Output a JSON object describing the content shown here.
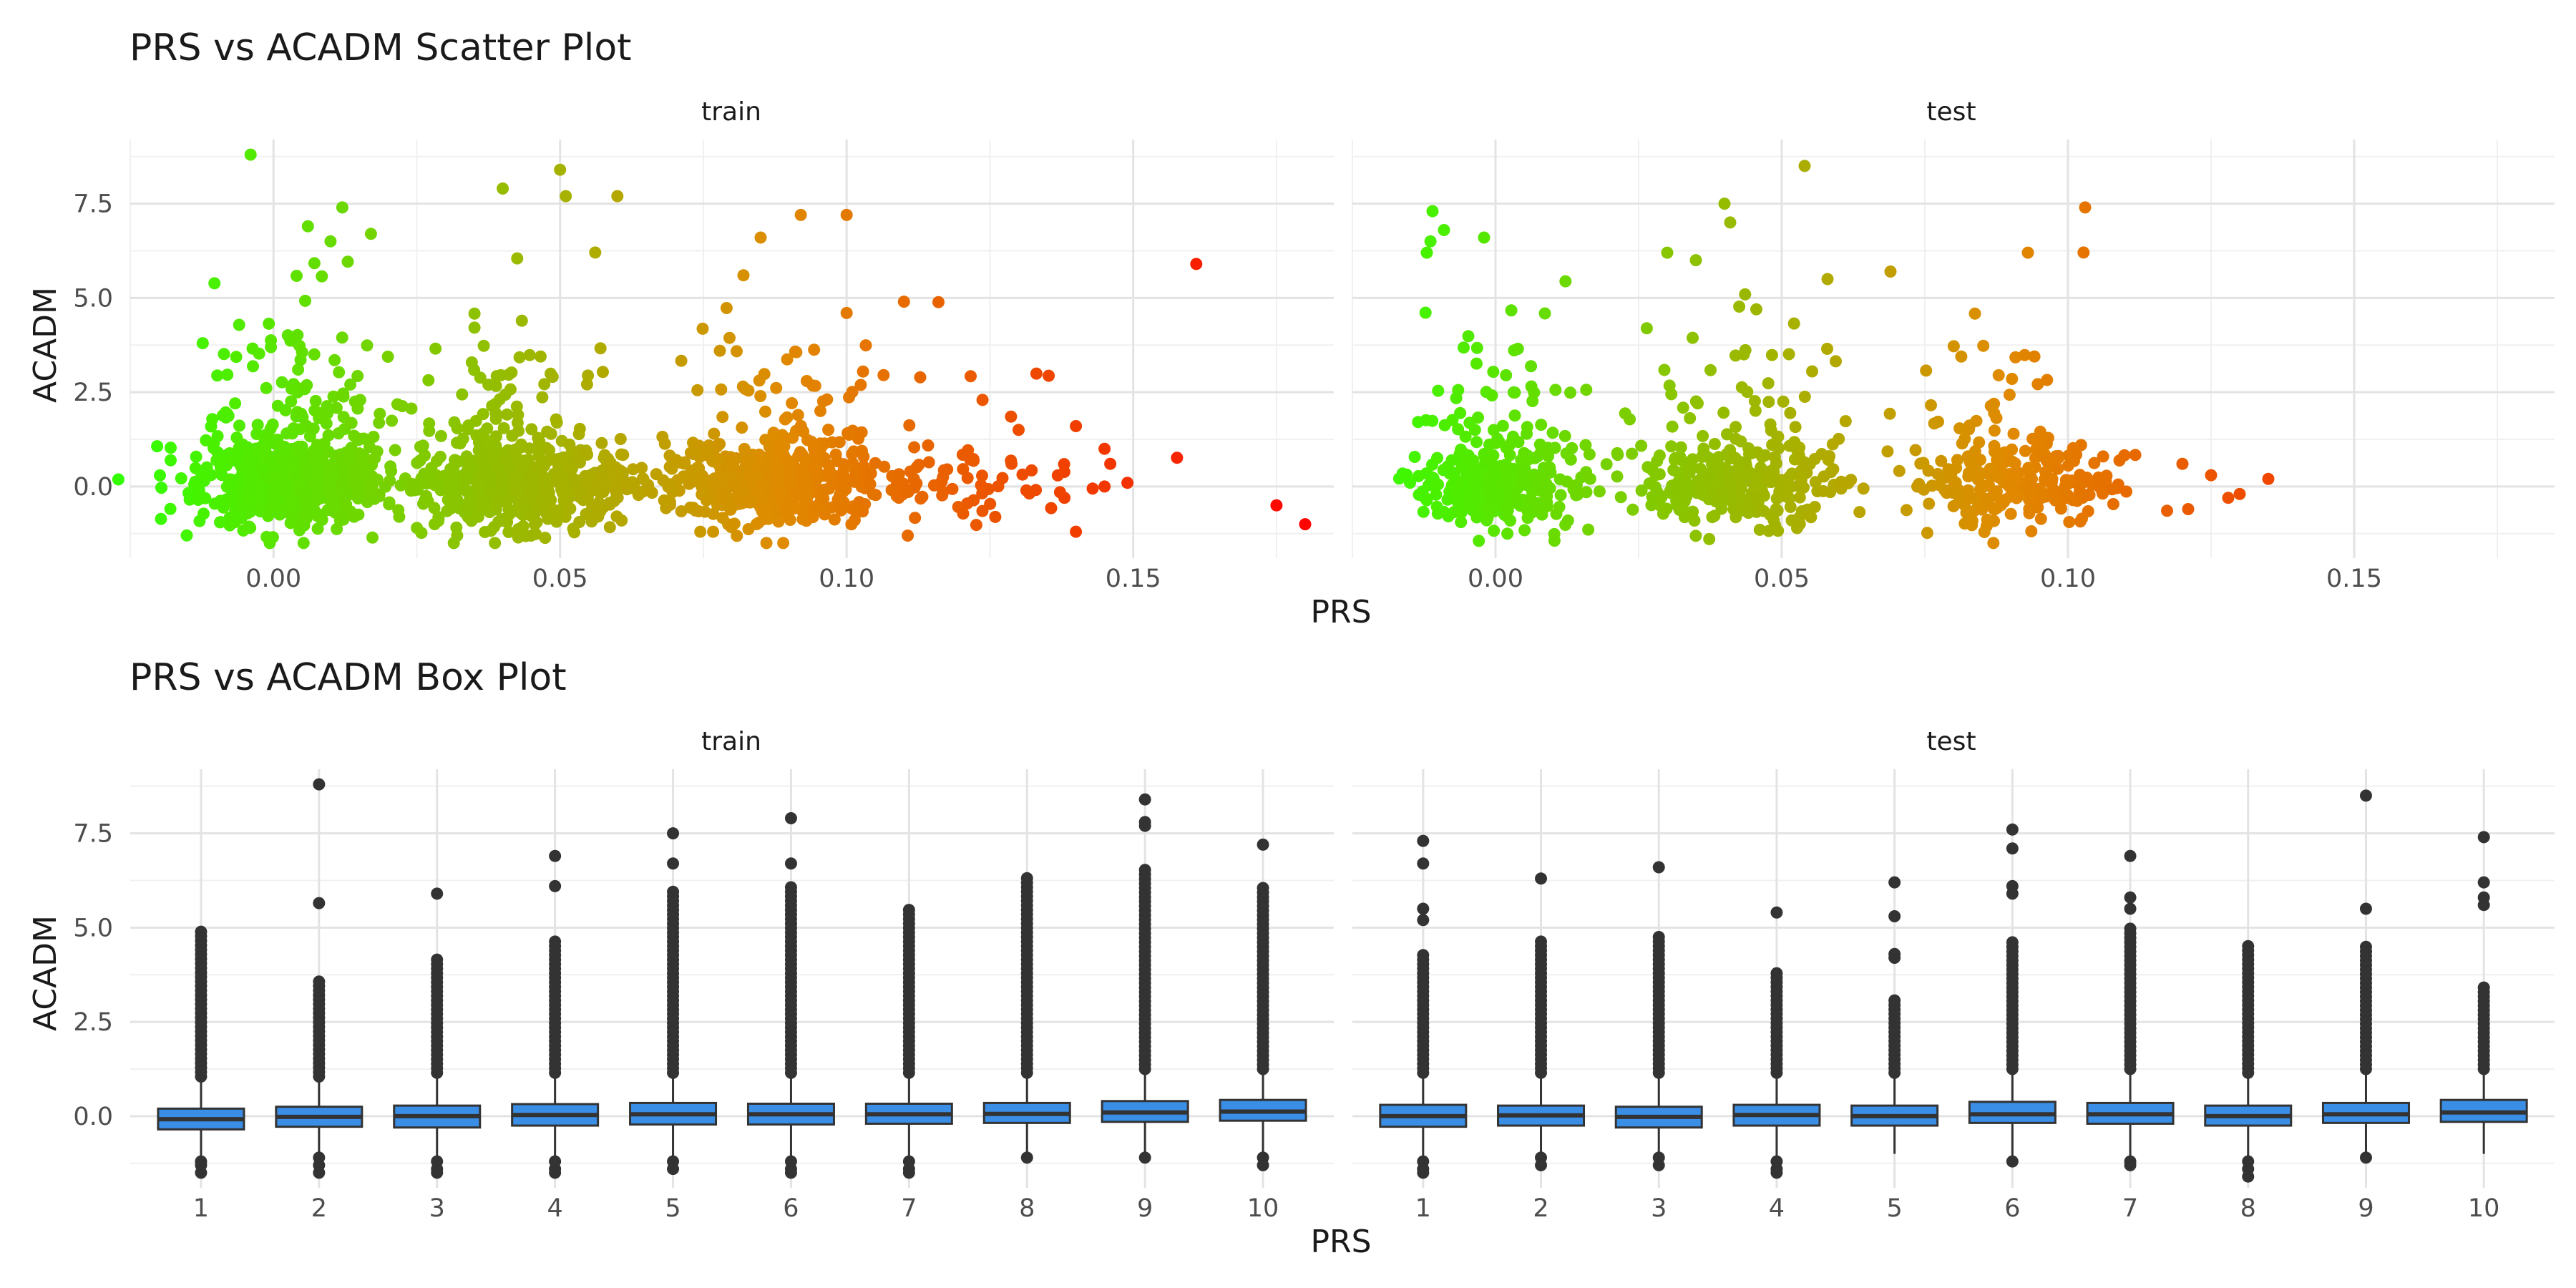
{
  "figure": {
    "title_scatter": "PRS vs ACADM Scatter Plot",
    "title_box": "PRS vs ACADM Box Plot",
    "panels": [
      "train",
      "test"
    ],
    "xlabel": "PRS",
    "ylabel": "ACADM",
    "color_low": "#33ff00",
    "color_mid": "#e08a00",
    "color_high": "#ff0000",
    "box_fill": "#3a8ee6",
    "box_line": "#333333"
  },
  "chart_data": [
    {
      "type": "scatter",
      "title": "PRS vs ACADM Scatter Plot",
      "xlabel": "PRS",
      "ylabel": "ACADM",
      "facets": [
        "train",
        "test"
      ],
      "xlim": [
        -0.025,
        0.185
      ],
      "ylim": [
        -1.9,
        9.2
      ],
      "x_ticks": [
        0.0,
        0.05,
        0.1,
        0.15
      ],
      "x_tick_labels": [
        "0.00",
        "0.05",
        "0.10",
        "0.15"
      ],
      "y_ticks": [
        0.0,
        2.5,
        5.0,
        7.5
      ],
      "y_tick_labels": [
        "0.0",
        "2.5",
        "5.0",
        "7.5"
      ],
      "grid": true,
      "color_scale": "green-to-red by PRS",
      "series": [
        {
          "facet": "train",
          "clusters": [
            {
              "x_center": 0.003,
              "x_spread": 0.008,
              "count": 700
            },
            {
              "x_center": 0.042,
              "x_spread": 0.01,
              "count": 600
            },
            {
              "x_center": 0.088,
              "x_spread": 0.01,
              "count": 480
            },
            {
              "x_center": 0.118,
              "x_spread": 0.012,
              "count": 70
            }
          ],
          "outliers": [
            [
              -0.004,
              8.8
            ],
            [
              0.012,
              7.4
            ],
            [
              0.04,
              7.9
            ],
            [
              0.05,
              8.4
            ],
            [
              0.051,
              7.7
            ],
            [
              0.06,
              7.7
            ],
            [
              0.085,
              6.6
            ],
            [
              0.092,
              7.2
            ],
            [
              0.1,
              7.2
            ],
            [
              0.017,
              6.7
            ],
            [
              0.006,
              6.9
            ],
            [
              0.082,
              5.6
            ],
            [
              0.11,
              4.9
            ],
            [
              0.1,
              4.6
            ],
            [
              0.13,
              1.5
            ],
            [
              0.14,
              1.6
            ],
            [
              0.145,
              1.0
            ],
            [
              0.146,
              0.6
            ],
            [
              0.145,
              0.0
            ],
            [
              0.138,
              -0.3
            ],
            [
              0.14,
              -1.2
            ],
            [
              0.161,
              5.9
            ],
            [
              0.175,
              -0.5
            ],
            [
              0.18,
              -1.0
            ]
          ]
        },
        {
          "facet": "test",
          "clusters": [
            {
              "x_center": 0.0,
              "x_spread": 0.007,
              "count": 320
            },
            {
              "x_center": 0.043,
              "x_spread": 0.009,
              "count": 330
            },
            {
              "x_center": 0.09,
              "x_spread": 0.009,
              "count": 260
            }
          ],
          "outliers": [
            [
              -0.011,
              7.3
            ],
            [
              -0.009,
              6.8
            ],
            [
              -0.012,
              6.2
            ],
            [
              -0.002,
              6.6
            ],
            [
              0.03,
              6.2
            ],
            [
              0.035,
              6.0
            ],
            [
              0.04,
              7.5
            ],
            [
              0.041,
              7.0
            ],
            [
              0.054,
              8.5
            ],
            [
              0.058,
              5.5
            ],
            [
              0.069,
              5.7
            ],
            [
              0.093,
              6.2
            ],
            [
              0.103,
              7.4
            ],
            [
              0.12,
              0.6
            ],
            [
              0.13,
              -0.2
            ],
            [
              0.135,
              0.2
            ],
            [
              0.125,
              0.3
            ],
            [
              0.128,
              -0.3
            ],
            [
              0.121,
              -0.6
            ]
          ]
        }
      ]
    },
    {
      "type": "box",
      "title": "PRS vs ACADM Box Plot",
      "xlabel": "PRS",
      "ylabel": "ACADM",
      "facets": [
        "train",
        "test"
      ],
      "categories": [
        "1",
        "2",
        "3",
        "4",
        "5",
        "6",
        "7",
        "8",
        "9",
        "10"
      ],
      "ylim": [
        -1.9,
        9.2
      ],
      "y_ticks": [
        0.0,
        2.5,
        5.0,
        7.5
      ],
      "y_tick_labels": [
        "0.0",
        "2.5",
        "5.0",
        "7.5"
      ],
      "grid": true,
      "series": [
        {
          "facet": "train",
          "boxes": [
            {
              "q1": -0.35,
              "median": -0.08,
              "q3": 0.2,
              "lower": -1.1,
              "upper": 1.0,
              "outliers_high_max": 4.9,
              "outliers_high_min": 1.05,
              "outliers_low": [
                -1.2,
                -1.3,
                -1.5
              ]
            },
            {
              "q1": -0.28,
              "median": -0.02,
              "q3": 0.25,
              "lower": -1.0,
              "upper": 1.0,
              "outliers_high_max": 3.6,
              "outliers_high_min": 1.05,
              "outliers_low": [
                -1.1,
                -1.3,
                -1.5
              ],
              "extra_outliers": [
                5.65,
                8.8
              ]
            },
            {
              "q1": -0.3,
              "median": 0.0,
              "q3": 0.28,
              "lower": -1.1,
              "upper": 1.1,
              "outliers_high_max": 4.2,
              "outliers_high_min": 1.15,
              "outliers_low": [
                -1.2,
                -1.4,
                -1.5
              ],
              "extra_outliers": [
                5.9
              ]
            },
            {
              "q1": -0.25,
              "median": 0.03,
              "q3": 0.32,
              "lower": -1.1,
              "upper": 1.1,
              "outliers_high_max": 4.7,
              "outliers_high_min": 1.15,
              "outliers_low": [
                -1.2,
                -1.4,
                -1.5
              ],
              "extra_outliers": [
                6.1,
                6.9
              ]
            },
            {
              "q1": -0.22,
              "median": 0.05,
              "q3": 0.35,
              "lower": -1.1,
              "upper": 1.1,
              "outliers_high_max": 6.0,
              "outliers_high_min": 1.15,
              "outliers_low": [
                -1.2,
                -1.4
              ],
              "extra_outliers": [
                6.7,
                7.5
              ]
            },
            {
              "q1": -0.22,
              "median": 0.05,
              "q3": 0.33,
              "lower": -1.1,
              "upper": 1.1,
              "outliers_high_max": 6.1,
              "outliers_high_min": 1.15,
              "outliers_low": [
                -1.2,
                -1.4,
                -1.5
              ],
              "extra_outliers": [
                6.7,
                7.9
              ]
            },
            {
              "q1": -0.2,
              "median": 0.05,
              "q3": 0.33,
              "lower": -1.1,
              "upper": 1.1,
              "outliers_high_max": 5.5,
              "outliers_high_min": 1.15,
              "outliers_low": [
                -1.2,
                -1.4,
                -1.5
              ]
            },
            {
              "q1": -0.18,
              "median": 0.06,
              "q3": 0.35,
              "lower": -1.0,
              "upper": 1.1,
              "outliers_high_max": 6.4,
              "outliers_high_min": 1.15,
              "outliers_low": [
                -1.1
              ]
            },
            {
              "q1": -0.15,
              "median": 0.1,
              "q3": 0.4,
              "lower": -1.0,
              "upper": 1.2,
              "outliers_high_max": 6.6,
              "outliers_high_min": 1.25,
              "outliers_low": [
                -1.1
              ],
              "extra_outliers": [
                7.7,
                7.8,
                8.4
              ]
            },
            {
              "q1": -0.12,
              "median": 0.12,
              "q3": 0.43,
              "lower": -1.0,
              "upper": 1.2,
              "outliers_high_max": 6.1,
              "outliers_high_min": 1.25,
              "outliers_low": [
                -1.1,
                -1.3
              ],
              "extra_outliers": [
                7.2
              ]
            }
          ]
        },
        {
          "facet": "test",
          "boxes": [
            {
              "q1": -0.28,
              "median": 0.0,
              "q3": 0.3,
              "lower": -1.1,
              "upper": 1.1,
              "outliers_high_max": 4.3,
              "outliers_high_min": 1.15,
              "outliers_low": [
                -1.2,
                -1.4,
                -1.5
              ],
              "extra_outliers": [
                5.2,
                5.5,
                6.7,
                7.3
              ]
            },
            {
              "q1": -0.25,
              "median": 0.02,
              "q3": 0.28,
              "lower": -1.0,
              "upper": 1.1,
              "outliers_high_max": 4.7,
              "outliers_high_min": 1.15,
              "outliers_low": [
                -1.1,
                -1.3
              ],
              "extra_outliers": [
                6.3
              ]
            },
            {
              "q1": -0.3,
              "median": -0.02,
              "q3": 0.25,
              "lower": -1.0,
              "upper": 1.1,
              "outliers_high_max": 4.8,
              "outliers_high_min": 1.15,
              "outliers_low": [
                -1.1,
                -1.3
              ],
              "extra_outliers": [
                6.6
              ]
            },
            {
              "q1": -0.25,
              "median": 0.03,
              "q3": 0.3,
              "lower": -1.1,
              "upper": 1.1,
              "outliers_high_max": 3.9,
              "outliers_high_min": 1.15,
              "outliers_low": [
                -1.2,
                -1.4,
                -1.5
              ],
              "extra_outliers": [
                5.4
              ]
            },
            {
              "q1": -0.25,
              "median": 0.0,
              "q3": 0.28,
              "lower": -1.0,
              "upper": 1.1,
              "outliers_high_max": 3.1,
              "outliers_high_min": 1.15,
              "outliers_low": [],
              "extra_outliers": [
                4.2,
                4.3,
                5.3,
                6.2
              ]
            },
            {
              "q1": -0.18,
              "median": 0.05,
              "q3": 0.38,
              "lower": -1.1,
              "upper": 1.2,
              "outliers_high_max": 4.7,
              "outliers_high_min": 1.25,
              "outliers_low": [
                -1.2
              ],
              "extra_outliers": [
                5.9,
                6.1,
                7.1,
                7.6
              ]
            },
            {
              "q1": -0.2,
              "median": 0.05,
              "q3": 0.35,
              "lower": -1.1,
              "upper": 1.2,
              "outliers_high_max": 5.0,
              "outliers_high_min": 1.25,
              "outliers_low": [
                -1.2,
                -1.3
              ],
              "extra_outliers": [
                5.5,
                5.8,
                6.9
              ]
            },
            {
              "q1": -0.25,
              "median": 0.0,
              "q3": 0.28,
              "lower": -1.1,
              "upper": 1.1,
              "outliers_high_max": 4.6,
              "outliers_high_min": 1.15,
              "outliers_low": [
                -1.2,
                -1.4,
                -1.6
              ]
            },
            {
              "q1": -0.18,
              "median": 0.05,
              "q3": 0.35,
              "lower": -1.0,
              "upper": 1.2,
              "outliers_high_max": 4.6,
              "outliers_high_min": 1.25,
              "outliers_low": [
                -1.1
              ],
              "extra_outliers": [
                5.5,
                8.5
              ]
            },
            {
              "q1": -0.15,
              "median": 0.1,
              "q3": 0.43,
              "lower": -1.0,
              "upper": 1.2,
              "outliers_high_max": 3.5,
              "outliers_high_min": 1.25,
              "outliers_low": [],
              "extra_outliers": [
                5.6,
                5.8,
                6.2,
                7.4
              ]
            }
          ]
        }
      ]
    }
  ]
}
